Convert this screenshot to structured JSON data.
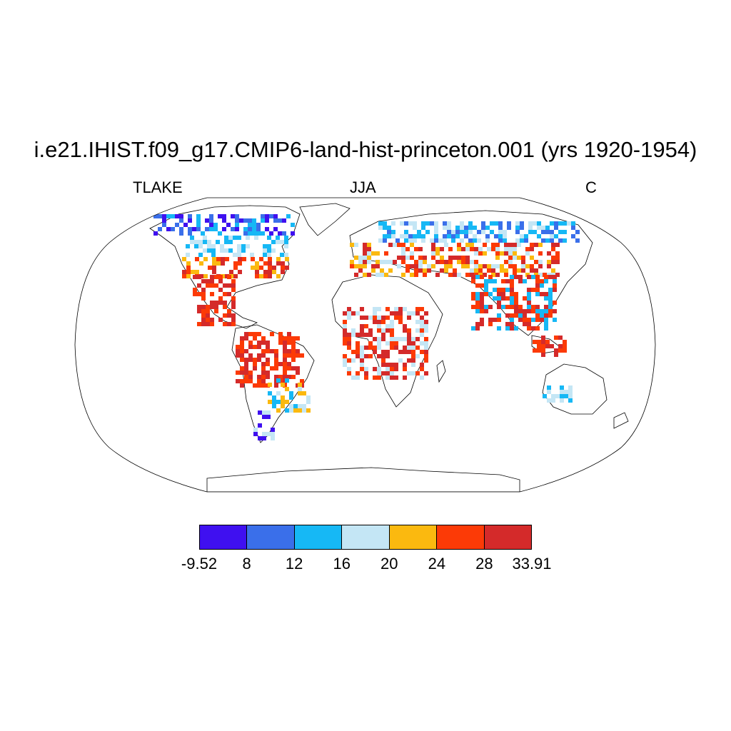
{
  "title": "i.e21.IHIST.f09_g17.CMIP6-land-hist-princeton.001 (yrs 1920-1954)",
  "subtitle_left": "TLAKE",
  "subtitle_center": "JJA",
  "subtitle_right": "C",
  "projection": "Robinson",
  "colorbar": {
    "colors": [
      "#3f10f0",
      "#3a6fea",
      "#16b8f5",
      "#c4e6f5",
      "#fbb90f",
      "#fc3a06",
      "#d42a2a"
    ],
    "labels": [
      "-9.52",
      "8",
      "12",
      "16",
      "20",
      "24",
      "28",
      "33.91"
    ]
  }
}
